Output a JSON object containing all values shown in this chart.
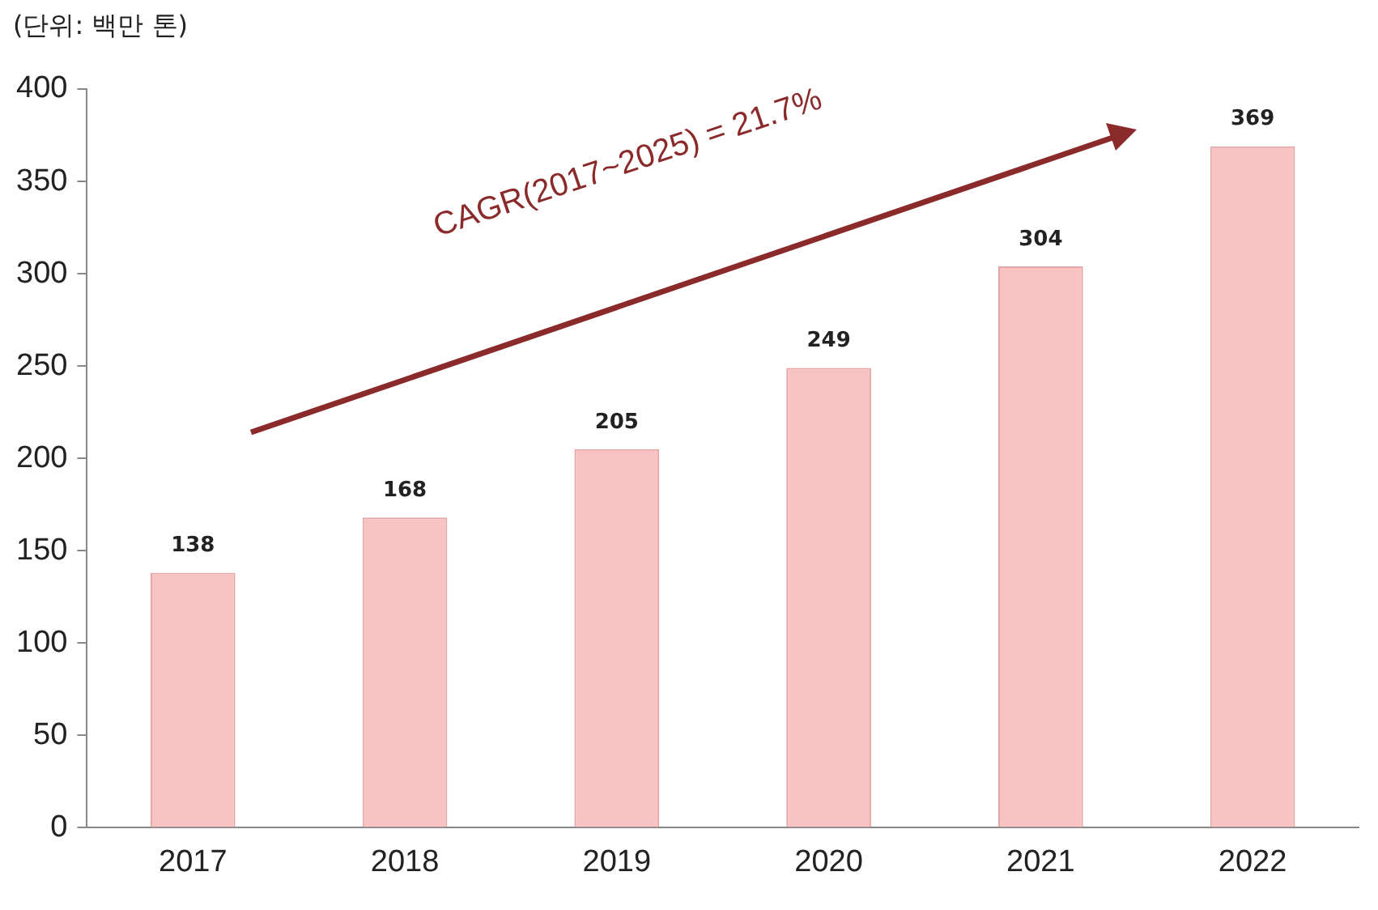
{
  "chart_data": {
    "type": "bar",
    "ylabel": "(단위: 백만 톤)",
    "categories": [
      "2017",
      "2018",
      "2019",
      "2020",
      "2021",
      "2022"
    ],
    "values": [
      138,
      168,
      205,
      249,
      304,
      369
    ],
    "color": "#f7c3c3",
    "ylim": [
      0,
      400
    ],
    "yticks": [
      0,
      50,
      100,
      150,
      200,
      250,
      300,
      350,
      400
    ],
    "grid": false,
    "legend": false,
    "data_labels": true,
    "annotations": [
      "CAGR(2017~2025) = 21.7%"
    ]
  }
}
